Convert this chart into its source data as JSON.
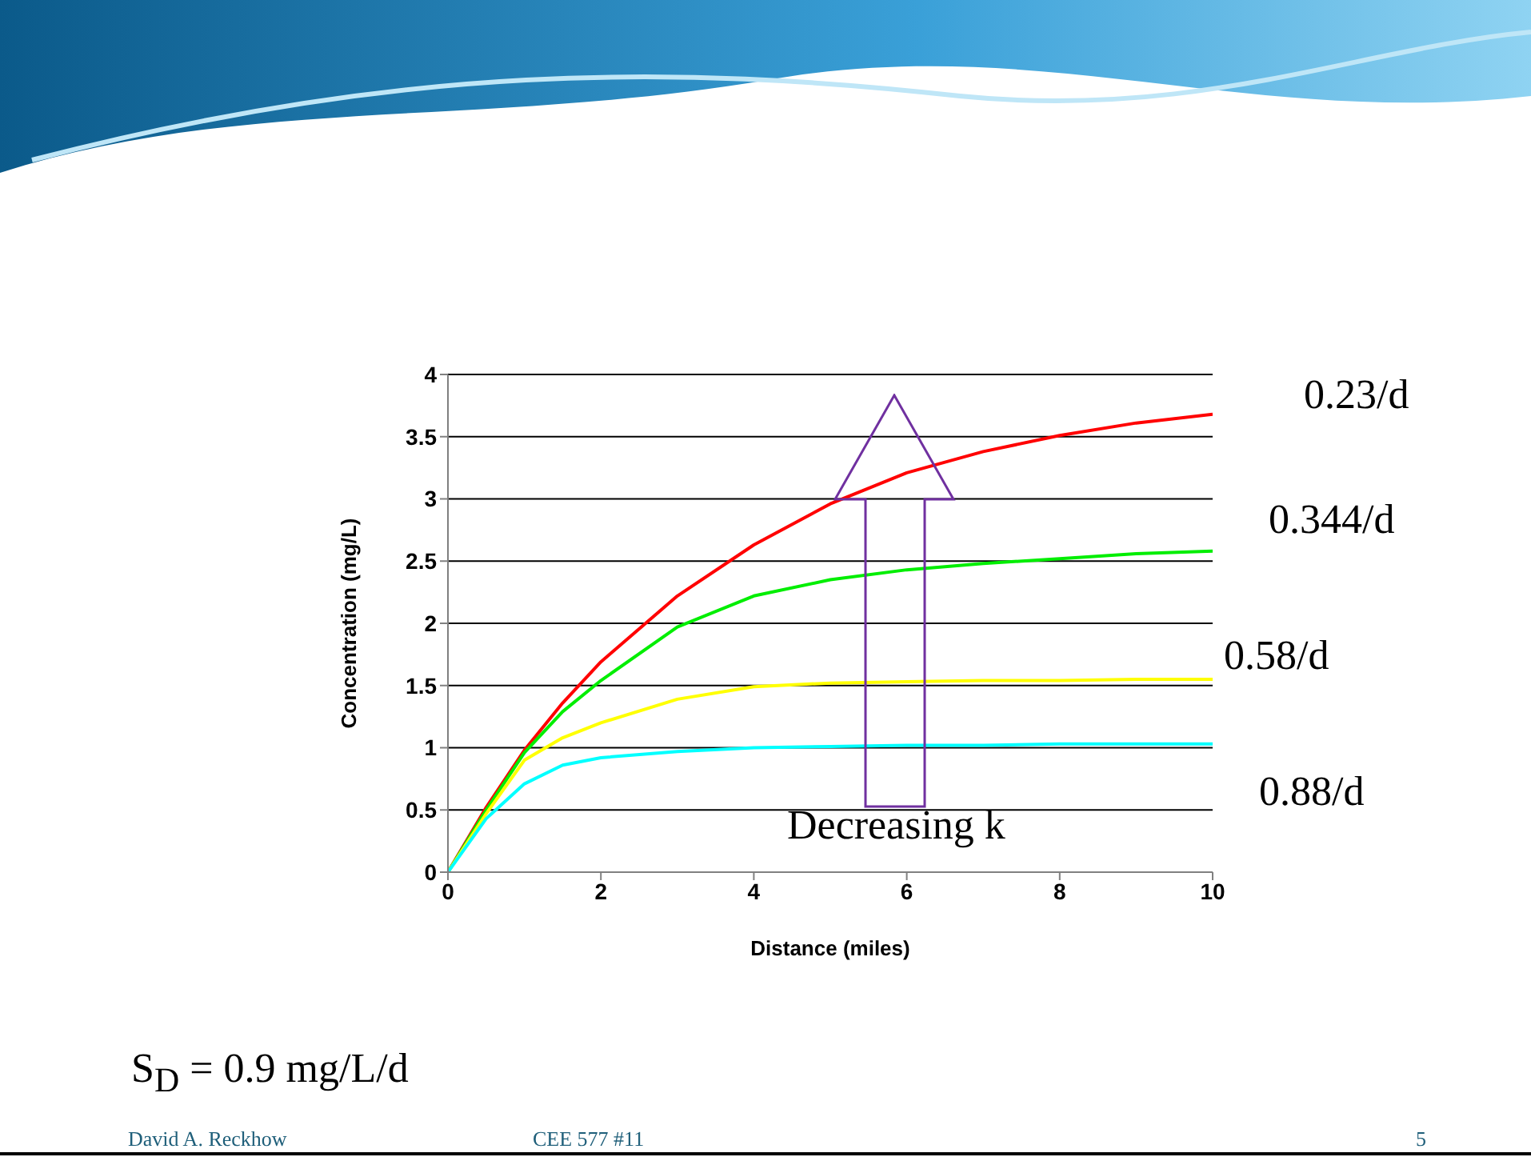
{
  "chart_data": {
    "type": "line",
    "xlabel": "Distance (miles)",
    "ylabel": "Concentration (mg/L)",
    "x": [
      0,
      0.5,
      1,
      1.5,
      2,
      3,
      4,
      5,
      6,
      7,
      8,
      9,
      10
    ],
    "series": [
      {
        "name": "0.23/d",
        "color": "#ff0000",
        "values": [
          0,
          0.52,
          0.98,
          1.36,
          1.69,
          2.22,
          2.63,
          2.96,
          3.21,
          3.38,
          3.51,
          3.61,
          3.68
        ]
      },
      {
        "name": "0.344/d",
        "color": "#00ee00",
        "values": [
          0,
          0.5,
          0.96,
          1.29,
          1.54,
          1.97,
          2.22,
          2.35,
          2.43,
          2.48,
          2.52,
          2.56,
          2.58
        ]
      },
      {
        "name": "0.58/d",
        "color": "#ffff00",
        "values": [
          0,
          0.47,
          0.9,
          1.08,
          1.2,
          1.39,
          1.49,
          1.52,
          1.53,
          1.54,
          1.54,
          1.55,
          1.55
        ]
      },
      {
        "name": "0.88/d",
        "color": "#00ffff",
        "values": [
          0,
          0.43,
          0.71,
          0.86,
          0.92,
          0.97,
          1.0,
          1.01,
          1.02,
          1.02,
          1.03,
          1.03,
          1.03
        ]
      }
    ],
    "xlim": [
      0,
      10
    ],
    "xticks": [
      0,
      2,
      4,
      6,
      8,
      10
    ],
    "ylim": [
      0,
      4
    ],
    "yticks": [
      0,
      0.5,
      1,
      1.5,
      2,
      2.5,
      3,
      3.5,
      4
    ],
    "grid": "y",
    "marker": "none",
    "line_style": "solid",
    "annotations": [
      "Decreasing k",
      "S$_{D}$ = 0.9 mg/L/d",
      "David A. Reckhow",
      "CEE 577 #11",
      "5"
    ]
  }
}
